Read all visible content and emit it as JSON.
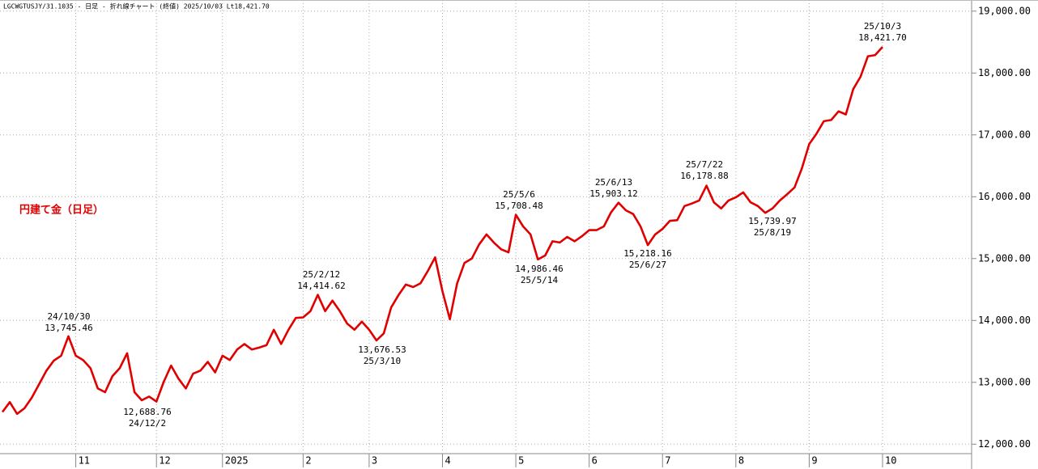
{
  "chart_data": {
    "type": "line",
    "title": "LGCWGTUSJY/31.1035 - 日足 - 折れ線チャート (終値)  2025/10/03 Lt18,421.70",
    "label": "円建て金（日足）",
    "categories": [
      null,
      null,
      null,
      null,
      null,
      null,
      null,
      null,
      null,
      null,
      "11",
      null,
      null,
      null,
      null,
      null,
      null,
      null,
      null,
      null,
      null,
      "12",
      null,
      null,
      null,
      null,
      null,
      null,
      null,
      null,
      "2025",
      null,
      null,
      null,
      null,
      null,
      null,
      null,
      null,
      null,
      null,
      "2",
      null,
      null,
      null,
      null,
      null,
      null,
      null,
      null,
      "3",
      null,
      null,
      null,
      null,
      null,
      null,
      null,
      null,
      null,
      "4",
      null,
      null,
      null,
      null,
      null,
      null,
      null,
      null,
      null,
      "5",
      null,
      null,
      null,
      null,
      null,
      null,
      null,
      null,
      null,
      "6",
      null,
      null,
      null,
      null,
      null,
      null,
      null,
      null,
      null,
      "7",
      null,
      null,
      null,
      null,
      null,
      null,
      null,
      null,
      null,
      "8",
      null,
      null,
      null,
      null,
      null,
      null,
      null,
      null,
      null,
      "9",
      null,
      null,
      null,
      null,
      null,
      null,
      null,
      null,
      null,
      "10"
    ],
    "series": [
      {
        "name": "円建て金（日足）",
        "color": "#e00000",
        "values": [
          12520,
          12680,
          12490,
          12580,
          12750,
          12970,
          13190,
          13350,
          13430,
          13745.46,
          13430,
          13360,
          13230,
          12900,
          12840,
          13100,
          13230,
          13470,
          12840,
          12710,
          12770,
          12688.76,
          13010,
          13270,
          13060,
          12900,
          13140,
          13190,
          13330,
          13160,
          13430,
          13360,
          13530,
          13620,
          13530,
          13560,
          13600,
          13850,
          13620,
          13850,
          14040,
          14050,
          14150,
          14414.62,
          14150,
          14320,
          14150,
          13950,
          13850,
          13980,
          13850,
          13676.53,
          13790,
          14210,
          14410,
          14580,
          14540,
          14600,
          14800,
          15020,
          14470,
          14020,
          14600,
          14930,
          15000,
          15230,
          15390,
          15260,
          15150,
          15100,
          15708.48,
          15520,
          15390,
          14986.46,
          15050,
          15280,
          15260,
          15350,
          15280,
          15360,
          15460,
          15460,
          15520,
          15750,
          15903.12,
          15780,
          15720,
          15520,
          15218.16,
          15390,
          15480,
          15610,
          15620,
          15850,
          15890,
          15940,
          16178.88,
          15910,
          15810,
          15940,
          15990,
          16070,
          15910,
          15850,
          15739.97,
          15810,
          15940,
          16040,
          16150,
          16460,
          16850,
          17020,
          17220,
          17240,
          17380,
          17330,
          17740,
          17940,
          18270,
          18290,
          18421.7
        ]
      }
    ],
    "annotations": [
      {
        "lines": [
          "24/10/30",
          "13,745.46"
        ]
      },
      {
        "lines": [
          "12,688.76",
          "24/12/2"
        ]
      },
      {
        "lines": [
          "25/2/12",
          "14,414.62"
        ]
      },
      {
        "lines": [
          "13,676.53",
          "25/3/10"
        ]
      },
      {
        "lines": [
          "25/5/6",
          "15,708.48"
        ]
      },
      {
        "lines": [
          "14,986.46",
          "25/5/14"
        ]
      },
      {
        "lines": [
          "25/6/13",
          "15,903.12"
        ]
      },
      {
        "lines": [
          "15,218.16",
          "25/6/27"
        ]
      },
      {
        "lines": [
          "25/7/22",
          "16,178.88"
        ]
      },
      {
        "lines": [
          "15,739.97",
          "25/8/19"
        ]
      },
      {
        "lines": [
          "25/10/3",
          "18,421.70"
        ]
      }
    ],
    "ylim": [
      11860,
      19180
    ],
    "yticks": [
      {
        "value": 12000,
        "label": "12,000.00"
      },
      {
        "value": 13000,
        "label": "13,000.00"
      },
      {
        "value": 14000,
        "label": "14,000.00"
      },
      {
        "value": 15000,
        "label": "15,000.00"
      },
      {
        "value": 16000,
        "label": "16,000.00"
      },
      {
        "value": 17000,
        "label": "17,000.00"
      },
      {
        "value": 18000,
        "label": "18,000.00"
      },
      {
        "value": 19000,
        "label": "19,000.00"
      }
    ],
    "grid": true
  }
}
